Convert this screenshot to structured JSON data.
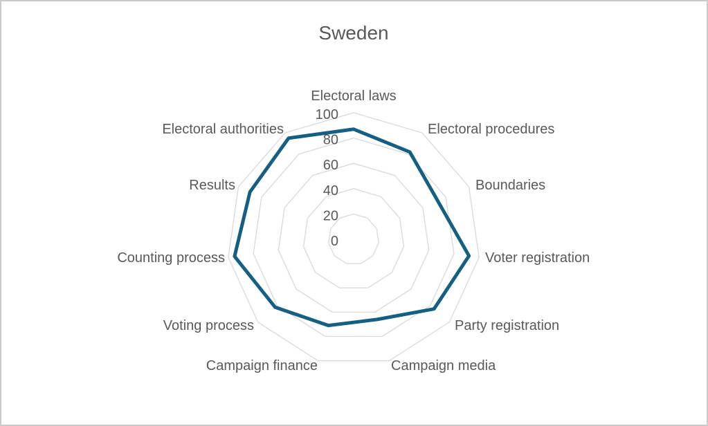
{
  "window": {
    "background": "#ffffff",
    "border_color": "#cbcbcb"
  },
  "chart_data": {
    "type": "radar",
    "title": "Sweden",
    "categories": [
      "Electoral laws",
      "Electoral procedures",
      "Boundaries",
      "Voter registration",
      "Party registration",
      "Campaign media",
      "Campaign finance",
      "Voting process",
      "Counting process",
      "Results",
      "Electoral authorities"
    ],
    "series": [
      {
        "name": "Sweden",
        "values": [
          87,
          82,
          73,
          92,
          84,
          66,
          71,
          82,
          95,
          90,
          95
        ]
      }
    ],
    "axis": {
      "min": 0,
      "max": 100,
      "tick_interval": 20,
      "ticks": [
        0,
        20,
        40,
        60,
        80,
        100
      ],
      "tick_labels": [
        "0",
        "20",
        "40",
        "60",
        "80",
        "100"
      ]
    },
    "grid": true,
    "legend": "none",
    "colors": {
      "series_line": "#156082",
      "gridline": "#d9d9d9",
      "label_text": "#595959",
      "title_text": "#595959"
    }
  }
}
